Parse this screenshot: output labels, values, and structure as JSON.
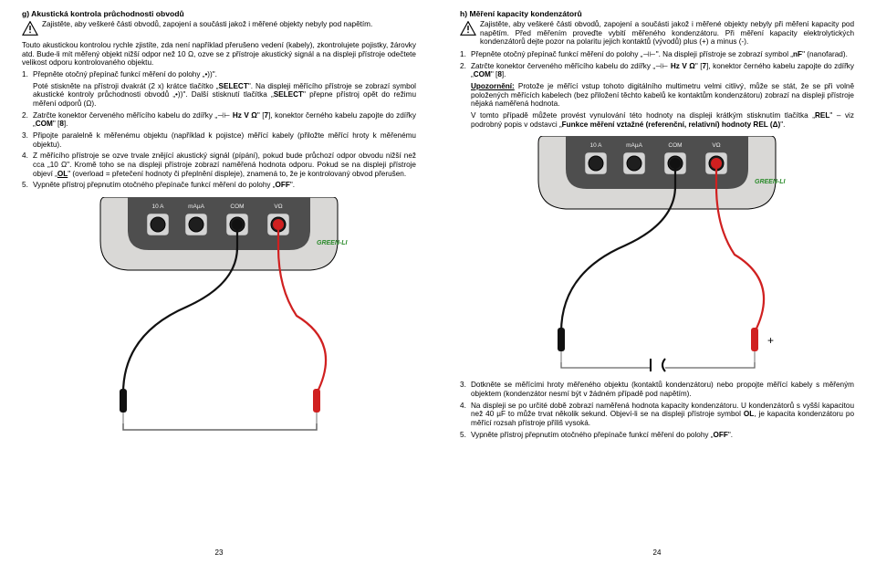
{
  "left": {
    "heading": "g) Akustická kontrola průchodnosti obvodů",
    "warning": "Zajistěte, aby veškeré části obvodů, zapojení a součásti jakož i měřené objekty nebyly pod napětím.",
    "intro": "Touto akustickou kontrolou rychle zjistíte, zda není například přerušeno vedení (kabely), zkontrolujete pojistky, žárovky atd. Bude-li mít měřený objekt nižší odpor než 10 Ω, ozve se z přístroje akustický signál a na displeji přístroje odečtete velikost odporu kontrolovaného objektu.",
    "step1_a": "Přepněte otočný přepínač funkcí měření do polohy „",
    "step1_b": "\".",
    "step1_para2_a": "Poté stiskněte na přístroji dvakrát (2 x) krátce tlačítko „",
    "step1_para2_b": "SELECT",
    "step1_para2_c": "\". Na displeji měřícího přístroje se zobrazí symbol akustické kontroly průchodnosti obvodů „",
    "step1_para2_d": "\". Další stisknutí tlačítka „",
    "step1_para2_e": "SELECT",
    "step1_para2_f": "\" přepne přístroj opět do režimu měření odporů (Ω).",
    "step2_a": "Zatrčte konektor červeného měřícího kabelu do zdířky „",
    "step2_b": " Hz V Ω",
    "step2_c": "\" [",
    "step2_d": "7",
    "step2_e": "], konektor černého kabelu zapojte do zdířky „",
    "step2_f": "COM",
    "step2_g": "\" [",
    "step2_h": "8",
    "step2_i": "].",
    "step3": "Připojte paralelně k měřenému objektu (například k pojistce) měřící kabely (přiložte měřící hroty k měřenému objektu).",
    "step4_a": "Z měřícího přístroje se ozve trvale znějící akustický signál (pípání), pokud bude průchozí odpor obvodu nižší než cca „10 Ω\". Kromě toho se na displeji přístroje zobrazí naměřená hodnota odporu. Pokud se na displeji přístroje objeví „",
    "step4_b": "OL",
    "step4_c": "\" (overload = přetečení hodnoty či přeplnění displeje), znamená to, že je kontrolovaný obvod přerušen.",
    "step5_a": "Vypněte přístroj přepnutím otočného přepínače funkcí měření do polohy „",
    "step5_b": "OFF",
    "step5_c": "\".",
    "pagenum": "23"
  },
  "right": {
    "heading": "h) Měření kapacity kondenzátorů",
    "warning": "Zajistěte, aby veškeré části obvodů, zapojení a součásti jakož i měřené objekty nebyly při měření kapacity pod napětím. Před měřením proveďte vybití měřeného kondenzátoru. Při měření kapacity elektrolytických kondenzátorů dejte pozor na polaritu jejich kontaktů (vývodů) plus (+) a minus (-).",
    "step1_a": "Přepněte otočný přepínač funkcí měření do polohy „",
    "step1_b": "\". Na displeji přístroje se zobrazí symbol „",
    "step1_c": "nF",
    "step1_d": "\" (nanofarad).",
    "step2_a": "Zatrčte konektor červeného měřícího kabelu do zdířky „",
    "step2_b": " Hz V Ω",
    "step2_c": "\" [",
    "step2_d": "7",
    "step2_e": "], konektor černého kabelu zapojte do zdířky „",
    "step2_f": "COM",
    "step2_g": "\" [",
    "step2_h": "8",
    "step2_i": "].",
    "step2_note_a": "Upozornění:",
    "step2_note_b": " Protože je měřící vstup tohoto digitálního multimetru velmi citlivý, může se stát, že se při volně položených měřících kabelech (bez přiložení těchto kabelů ke kontaktům kondenzátoru) zobrazí na displeji přístroje nějaká naměřená hodnota.",
    "step2_note2_a": "V tomto případě můžete provést vynulování této hodnoty na displeji krátkým stisknutím tlačítka „",
    "step2_note2_b": "REL",
    "step2_note2_c": "\" – viz podrobný popis v odstavci „",
    "step2_note2_d": "Funkce měření vztažné (referenční, relativní) hodnoty REL (Δ)",
    "step2_note2_e": "\".",
    "step3": "Dotkněte se měřícími hroty měřeného objektu (kontaktů kondenzátoru) nebo propojte měřící kabely s měřeným objektem (kondenzátor nesmí být v žádném případě pod napětím).",
    "step4_a": "Na displeji se po určité době zobrazí naměřená hodnota kapacity kondenzátoru. U kondenzátorů s vyšší kapacitou než 40 µF to může trvat několik sekund. Objeví-li se na displeji přístroje symbol ",
    "step4_b": "OL",
    "step4_c": ", je kapacita kondenzátoru po měřící rozsah přístroje příliš vysoká.",
    "step5_a": "Vypněte přístroj přepnutím otočného přepínače funkcí měření do polohy „",
    "step5_b": "OFF",
    "step5_c": "\".",
    "pagenum": "24"
  },
  "meter": {
    "body": "#d9d8d6",
    "face": "#4e4e4e",
    "jack_labels": [
      "10 A",
      "mAµA",
      "COM",
      "VΩ"
    ],
    "brand": "GREEN-LI",
    "probe_black": "#111",
    "probe_red": "#d02020"
  }
}
